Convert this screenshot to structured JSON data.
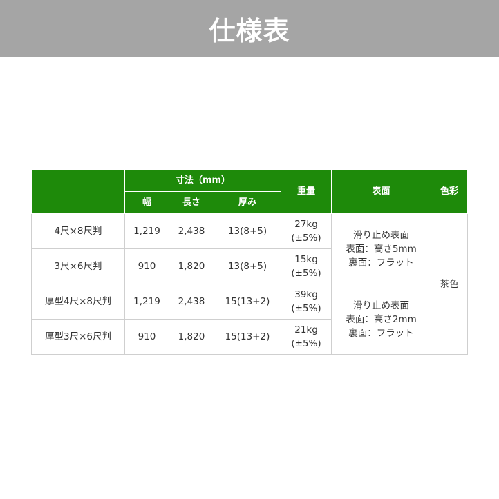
{
  "title": "仕様表",
  "colors": {
    "header_bg": "#1e8a0a",
    "banner_bg": "#a5a5a5"
  },
  "header": {
    "dimensions": "寸法（mm）",
    "width": "幅",
    "length": "長さ",
    "thickness": "厚み",
    "weight": "重量",
    "surface": "表面",
    "color": "色彩"
  },
  "rows": [
    {
      "name": "4尺×8尺判",
      "width": "1,219",
      "length": "2,438",
      "thickness": "13(8+5)",
      "weight": "27kg",
      "tolerance": "(±5%)"
    },
    {
      "name": "3尺×6尺判",
      "width": "910",
      "length": "1,820",
      "thickness": "13(8+5)",
      "weight": "15kg",
      "tolerance": "(±5%)"
    },
    {
      "name": "厚型4尺×8尺判",
      "width": "1,219",
      "length": "2,438",
      "thickness": "15(13+2)",
      "weight": "39kg",
      "tolerance": "(±5%)"
    },
    {
      "name": "厚型3尺×6尺判",
      "width": "910",
      "length": "1,820",
      "thickness": "15(13+2)",
      "weight": "21kg",
      "tolerance": "(±5%)"
    }
  ],
  "surfaces": [
    {
      "line1": "滑り止め表面",
      "line2": "表面：高さ5mm",
      "line3": "裏面：フラット"
    },
    {
      "line1": "滑り止め表面",
      "line2": "表面：高さ2mm",
      "line3": "裏面：フラット"
    }
  ],
  "color_value": "茶色"
}
